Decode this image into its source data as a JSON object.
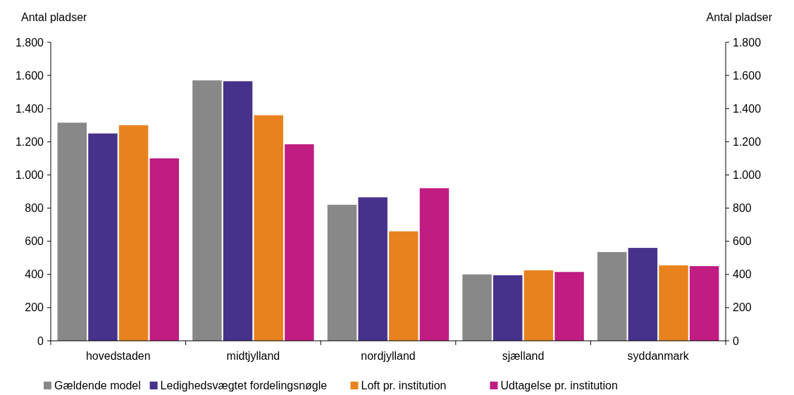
{
  "chart_data": {
    "type": "bar",
    "ylabel": "Antal pladser",
    "y2label": "Antal pladser",
    "categories": [
      "hovedstaden",
      "midtjylland",
      "nordjylland",
      "sjælland",
      "syddanmark"
    ],
    "series": [
      {
        "name": "Gældende model",
        "color": "#888888",
        "values": [
          1315,
          1570,
          820,
          400,
          535
        ]
      },
      {
        "name": "Ledighedsvægtet fordelingsnøgle",
        "color": "#46318b",
        "values": [
          1250,
          1565,
          865,
          395,
          560
        ]
      },
      {
        "name": "Loft pr. institution",
        "color": "#e8821e",
        "values": [
          1300,
          1360,
          660,
          425,
          455
        ]
      },
      {
        "name": "Udtagelse pr. institution",
        "color": "#c01c82",
        "values": [
          1100,
          1185,
          920,
          415,
          450
        ]
      }
    ],
    "ylim": [
      0,
      1800
    ],
    "yticks": [
      0,
      200,
      400,
      600,
      800,
      {
        "value": 1000,
        "label": "1.000"
      },
      {
        "value": 1200,
        "label": "1.200"
      },
      {
        "value": 1400,
        "label": "1.400"
      },
      {
        "value": 1600,
        "label": "1.600"
      },
      {
        "value": 1800,
        "label": "1.800"
      }
    ],
    "y2lim": [
      0,
      1800
    ],
    "y2ticks": [
      0,
      200,
      400,
      600,
      800,
      {
        "value": 1000,
        "label": "1.000"
      },
      {
        "value": 1200,
        "label": "1.200"
      },
      {
        "value": 1400,
        "label": "1.400"
      },
      {
        "value": 1600,
        "label": "1.600"
      },
      {
        "value": 1800,
        "label": "1.800"
      }
    ],
    "grid": false,
    "legend": "bottom"
  }
}
